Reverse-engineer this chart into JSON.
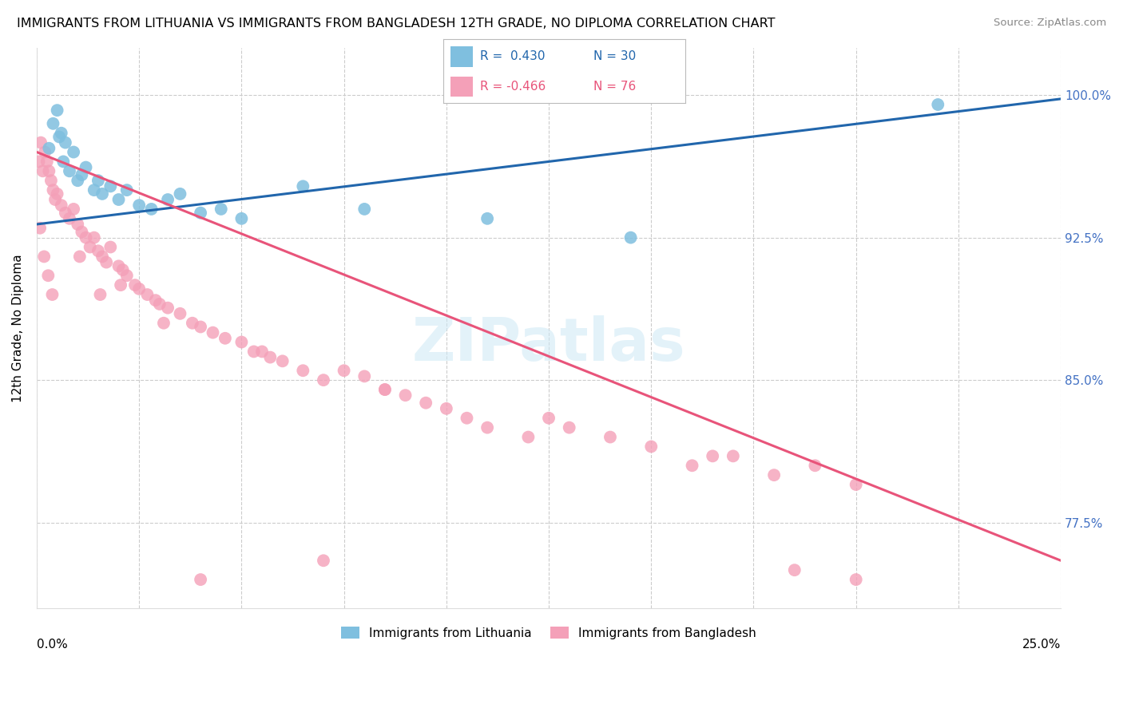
{
  "title": "IMMIGRANTS FROM LITHUANIA VS IMMIGRANTS FROM BANGLADESH 12TH GRADE, NO DIPLOMA CORRELATION CHART",
  "source": "Source: ZipAtlas.com",
  "xlim": [
    0.0,
    25.0
  ],
  "ylim": [
    73.0,
    102.5
  ],
  "blue_color": "#7fbfdf",
  "pink_color": "#f4a0b8",
  "blue_line_color": "#2166ac",
  "pink_line_color": "#e8547a",
  "legend_label1": "Immigrants from Lithuania",
  "legend_label2": "Immigrants from Bangladesh",
  "blue_line_x0": 0.0,
  "blue_line_y0": 93.2,
  "blue_line_x1": 25.0,
  "blue_line_y1": 99.8,
  "pink_line_x0": 0.0,
  "pink_line_y0": 97.0,
  "pink_line_x1": 25.0,
  "pink_line_y1": 75.5,
  "blue_scatter_x": [
    0.3,
    0.4,
    0.5,
    0.55,
    0.6,
    0.65,
    0.7,
    0.8,
    0.9,
    1.0,
    1.1,
    1.2,
    1.4,
    1.5,
    1.6,
    1.8,
    2.0,
    2.2,
    2.5,
    2.8,
    3.2,
    3.5,
    4.0,
    4.5,
    5.0,
    6.5,
    8.0,
    11.0,
    14.5,
    22.0
  ],
  "blue_scatter_y": [
    97.2,
    98.5,
    99.2,
    97.8,
    98.0,
    96.5,
    97.5,
    96.0,
    97.0,
    95.5,
    95.8,
    96.2,
    95.0,
    95.5,
    94.8,
    95.2,
    94.5,
    95.0,
    94.2,
    94.0,
    94.5,
    94.8,
    93.8,
    94.0,
    93.5,
    95.2,
    94.0,
    93.5,
    92.5,
    99.5
  ],
  "pink_scatter_x": [
    0.05,
    0.1,
    0.15,
    0.2,
    0.25,
    0.3,
    0.35,
    0.4,
    0.45,
    0.5,
    0.6,
    0.7,
    0.8,
    0.9,
    1.0,
    1.1,
    1.2,
    1.3,
    1.4,
    1.5,
    1.6,
    1.7,
    1.8,
    2.0,
    2.1,
    2.2,
    2.4,
    2.5,
    2.7,
    2.9,
    3.0,
    3.2,
    3.5,
    3.8,
    4.0,
    4.3,
    4.6,
    5.0,
    5.3,
    5.7,
    6.0,
    6.5,
    7.0,
    7.5,
    8.0,
    8.5,
    9.0,
    9.5,
    10.0,
    10.5,
    11.0,
    12.0,
    13.0,
    14.0,
    15.0,
    16.0,
    17.0,
    18.0,
    19.0,
    20.0,
    0.08,
    0.18,
    0.28,
    0.38,
    1.05,
    1.55,
    2.05,
    3.1,
    5.5,
    8.5,
    12.5,
    16.5,
    4.0,
    7.0,
    20.0,
    18.5
  ],
  "pink_scatter_y": [
    96.5,
    97.5,
    96.0,
    97.0,
    96.5,
    96.0,
    95.5,
    95.0,
    94.5,
    94.8,
    94.2,
    93.8,
    93.5,
    94.0,
    93.2,
    92.8,
    92.5,
    92.0,
    92.5,
    91.8,
    91.5,
    91.2,
    92.0,
    91.0,
    90.8,
    90.5,
    90.0,
    89.8,
    89.5,
    89.2,
    89.0,
    88.8,
    88.5,
    88.0,
    87.8,
    87.5,
    87.2,
    87.0,
    86.5,
    86.2,
    86.0,
    85.5,
    85.0,
    85.5,
    85.2,
    84.5,
    84.2,
    83.8,
    83.5,
    83.0,
    82.5,
    82.0,
    82.5,
    82.0,
    81.5,
    80.5,
    81.0,
    80.0,
    80.5,
    79.5,
    93.0,
    91.5,
    90.5,
    89.5,
    91.5,
    89.5,
    90.0,
    88.0,
    86.5,
    84.5,
    83.0,
    81.0,
    74.5,
    75.5,
    74.5,
    75.0
  ]
}
